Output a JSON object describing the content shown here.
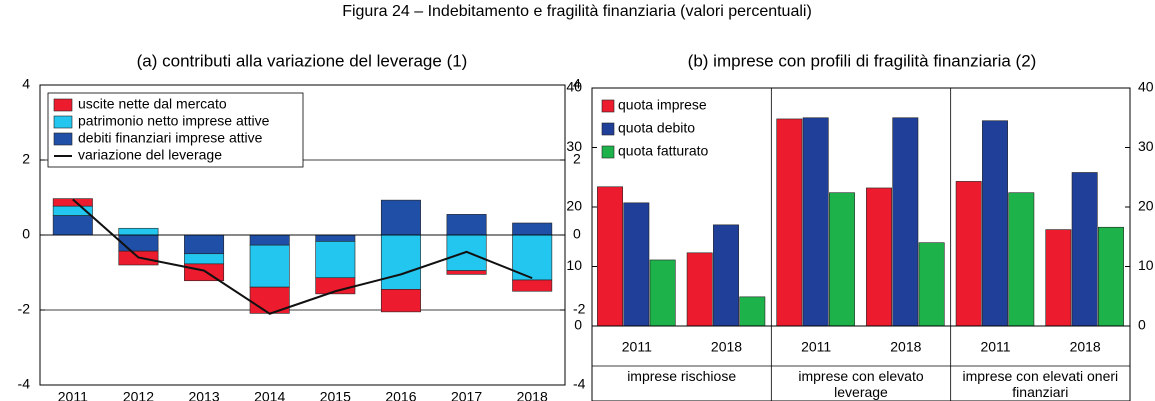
{
  "title": "Figura 24 – Indebitamento e fragilità finanziaria (valori percentuali)",
  "chart_data": [
    {
      "type": "stacked_bar",
      "title": "(a) contributi alla variazione del leverage (1)",
      "categories": [
        "2011",
        "2012",
        "2013",
        "2014",
        "2015",
        "2016",
        "2017",
        "2018"
      ],
      "series": [
        {
          "name": "uscite nette dal mercato",
          "color": "#ec1c2e",
          "values": [
            0.2,
            -0.37,
            -0.45,
            -0.7,
            -0.43,
            -0.6,
            -0.1,
            -0.3
          ]
        },
        {
          "name": "patrimonio netto imprese attive",
          "color": "#22c6ee",
          "values": [
            0.25,
            0.18,
            -0.27,
            -1.12,
            -0.97,
            -1.45,
            -0.95,
            -1.2
          ]
        },
        {
          "name": "debiti finanziari imprese attive",
          "color": "#1f4fa6",
          "values": [
            0.52,
            -0.43,
            -0.5,
            -0.27,
            -0.17,
            0.93,
            0.55,
            0.32
          ]
        },
        {
          "name": "variazione del leverage",
          "color": "#111111",
          "type": "line",
          "values": [
            0.95,
            -0.6,
            -0.95,
            -2.1,
            -1.5,
            -1.05,
            -0.45,
            -1.15
          ]
        }
      ],
      "ylim": [
        -4,
        4
      ],
      "yticks": [
        -4,
        -2,
        0,
        2,
        4
      ],
      "y2lim": [
        -4,
        4
      ],
      "y2ticks": [
        -4,
        -2,
        0,
        2,
        4
      ],
      "grid": true
    },
    {
      "type": "grouped_bar",
      "title": "(b) imprese con profili di fragilità finanziaria (2)",
      "categories": [
        "2011",
        "2018",
        "2011",
        "2018",
        "2011",
        "2018"
      ],
      "groups": [
        "imprese rischiose",
        "imprese con elevato leverage",
        "imprese con elevati oneri finanziari"
      ],
      "series": [
        {
          "name": "quota imprese",
          "color": "#ec1c2e",
          "values": [
            23.4,
            12.3,
            34.8,
            23.2,
            24.3,
            16.2
          ]
        },
        {
          "name": "quota debito",
          "color": "#1f3f98",
          "values": [
            20.7,
            17,
            35,
            35,
            34.5,
            25.8
          ]
        },
        {
          "name": "quota fatturato",
          "color": "#1db34a",
          "values": [
            11.1,
            4.9,
            22.4,
            14,
            22.4,
            16.6
          ]
        }
      ],
      "ylim": [
        0,
        40
      ],
      "yticks": [
        0,
        10,
        20,
        30,
        40
      ],
      "y2lim": [
        0,
        40
      ],
      "y2ticks": [
        0,
        10,
        20,
        30,
        40
      ],
      "grid": false
    }
  ]
}
